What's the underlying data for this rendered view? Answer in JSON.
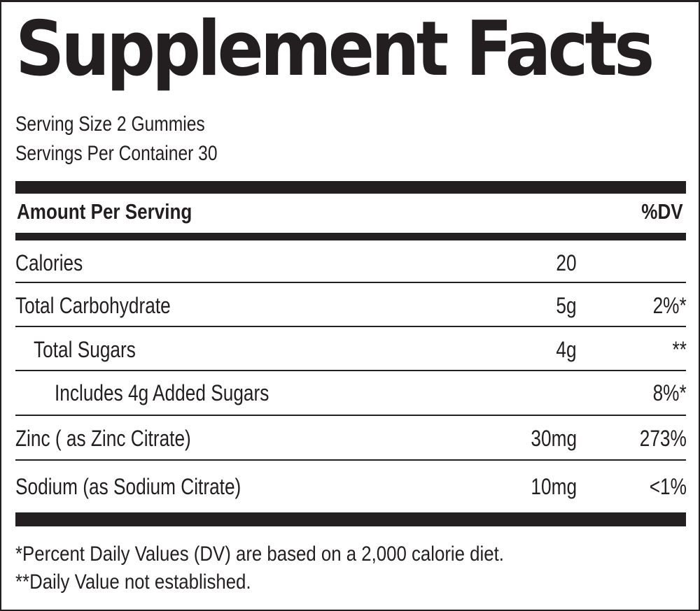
{
  "title": "Supplement Facts",
  "serving_size": "Serving Size 2 Gummies",
  "servings_per_container": "Servings Per Container 30",
  "header": {
    "amount_label": "Amount Per Serving",
    "dv_label": "%DV"
  },
  "rows": [
    {
      "name": "Calories",
      "amount": "20",
      "dv": ""
    },
    {
      "name": "Total Carbohydrate",
      "amount": "5g",
      "dv": "2%*"
    },
    {
      "name": "Total Sugars",
      "amount": "4g",
      "dv": "**"
    },
    {
      "name": "Includes 4g Added Sugars",
      "amount": "",
      "dv": "8%*"
    },
    {
      "name": "Zinc ( as Zinc Citrate)",
      "amount": "30mg",
      "dv": "273%"
    },
    {
      "name": "Sodium (as Sodium Citrate)",
      "amount": "10mg",
      "dv": "<1%"
    }
  ],
  "footnotes": [
    "*Percent Daily Values (DV) are based on a 2,000 calorie diet.",
    "**Daily Value not established."
  ]
}
